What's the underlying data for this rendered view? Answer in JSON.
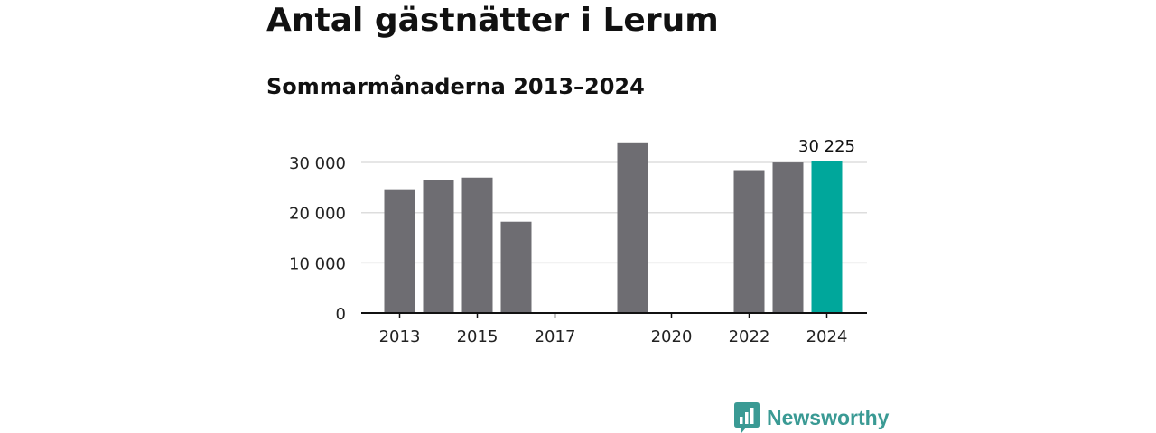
{
  "title": "Antal gästnätter i Lerum",
  "subtitle": "Sommarmånaderna 2013–2024",
  "brand": {
    "name": "Newsworthy",
    "icon": "newsworthy-logo-icon",
    "color": "#3a9a94"
  },
  "colors": {
    "bar": "#6e6d72",
    "highlight": "#00a79b",
    "grid": "#dddddd",
    "axis": "#111111"
  },
  "chart_data": {
    "type": "bar",
    "title": "Antal gästnätter i Lerum",
    "subtitle": "Sommarmånaderna 2013–2024",
    "xlabel": "",
    "ylabel": "",
    "categories": [
      "2013",
      "2014",
      "2015",
      "2016",
      "2017",
      "2018",
      "2019",
      "2020",
      "2021",
      "2022",
      "2023",
      "2024"
    ],
    "values": [
      24500,
      26500,
      27000,
      18200,
      null,
      null,
      34000,
      null,
      null,
      28300,
      30000,
      30225
    ],
    "highlight_index": 11,
    "data_labels": [
      {
        "index": 11,
        "text": "30 225"
      }
    ],
    "x_tick_labels": [
      "2013",
      "",
      "2015",
      "",
      "2017",
      "",
      "",
      "2020",
      "",
      "2022",
      "",
      "2024"
    ],
    "y_ticks": [
      0,
      10000,
      20000,
      30000
    ],
    "y_tick_labels": [
      "0",
      "10 000",
      "20 000",
      "30 000"
    ],
    "ylim": [
      0,
      34000
    ],
    "grid": true,
    "legend": "none"
  }
}
